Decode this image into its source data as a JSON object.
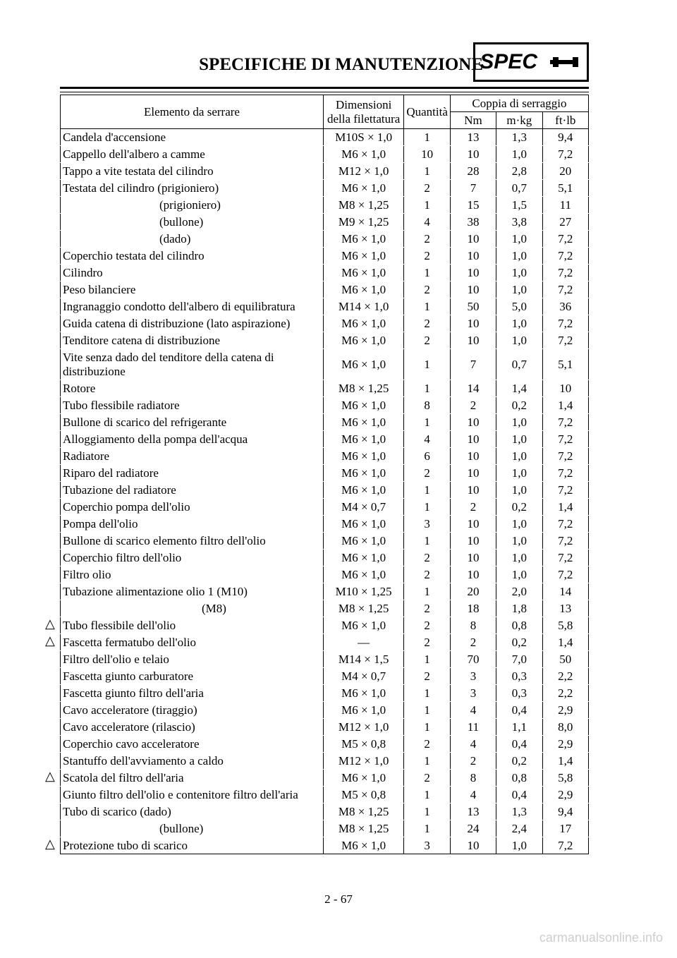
{
  "header": {
    "title": "SPECIFICHE DI MANUTENZIONE",
    "spec_label": "SPEC"
  },
  "table": {
    "headers": {
      "item": "Elemento da serrare",
      "dimensions": "Dimensioni della filettatura",
      "quantity": "Quantità",
      "torque_group": "Coppia di serraggio",
      "nm": "Nm",
      "mkg": "m·kg",
      "ftlb": "ft·lb"
    },
    "rows": [
      {
        "item": "Candela d'accensione",
        "dim": "M10S × 1,0",
        "qty": "1",
        "nm": "13",
        "mkg": "1,3",
        "ftlb": "9,4",
        "triangle": false
      },
      {
        "item": "Cappello dell'albero a camme",
        "dim": "M6 × 1,0",
        "qty": "10",
        "nm": "10",
        "mkg": "1,0",
        "ftlb": "7,2",
        "triangle": false
      },
      {
        "item": "Tappo a vite testata del cilindro",
        "dim": "M12 × 1,0",
        "qty": "1",
        "nm": "28",
        "mkg": "2,8",
        "ftlb": "20",
        "triangle": false
      },
      {
        "item": "Testata del cilindro  (prigioniero)",
        "dim": "M6 × 1,0",
        "qty": "2",
        "nm": "7",
        "mkg": "0,7",
        "ftlb": "5,1",
        "triangle": false
      },
      {
        "item": "(prigioniero)",
        "dim": "M8 × 1,25",
        "qty": "1",
        "nm": "15",
        "mkg": "1,5",
        "ftlb": "11",
        "triangle": false,
        "indent": true
      },
      {
        "item": "(bullone)",
        "dim": "M9 × 1,25",
        "qty": "4",
        "nm": "38",
        "mkg": "3,8",
        "ftlb": "27",
        "triangle": false,
        "indent": true
      },
      {
        "item": "(dado)",
        "dim": "M6 × 1,0",
        "qty": "2",
        "nm": "10",
        "mkg": "1,0",
        "ftlb": "7,2",
        "triangle": false,
        "indent": true
      },
      {
        "item": "Coperchio testata del cilindro",
        "dim": "M6 × 1,0",
        "qty": "2",
        "nm": "10",
        "mkg": "1,0",
        "ftlb": "7,2",
        "triangle": false
      },
      {
        "item": "Cilindro",
        "dim": "M6 × 1,0",
        "qty": "1",
        "nm": "10",
        "mkg": "1,0",
        "ftlb": "7,2",
        "triangle": false
      },
      {
        "item": "Peso bilanciere",
        "dim": "M6 × 1,0",
        "qty": "2",
        "nm": "10",
        "mkg": "1,0",
        "ftlb": "7,2",
        "triangle": false
      },
      {
        "item": "Ingranaggio condotto dell'albero di equilibratura",
        "dim": "M14 × 1,0",
        "qty": "1",
        "nm": "50",
        "mkg": "5,0",
        "ftlb": "36",
        "triangle": false
      },
      {
        "item": "Guida catena di distribuzione (lato aspirazione)",
        "dim": "M6 × 1,0",
        "qty": "2",
        "nm": "10",
        "mkg": "1,0",
        "ftlb": "7,2",
        "triangle": false
      },
      {
        "item": "Tenditore catena di distribuzione",
        "dim": "M6 × 1,0",
        "qty": "2",
        "nm": "10",
        "mkg": "1,0",
        "ftlb": "7,2",
        "triangle": false
      },
      {
        "item": "Vite senza dado del tenditore della catena di distribuzione",
        "dim": "M6 × 1,0",
        "qty": "1",
        "nm": "7",
        "mkg": "0,7",
        "ftlb": "5,1",
        "triangle": false
      },
      {
        "item": "Rotore",
        "dim": "M8 × 1,25",
        "qty": "1",
        "nm": "14",
        "mkg": "1,4",
        "ftlb": "10",
        "triangle": false
      },
      {
        "item": "Tubo flessibile radiatore",
        "dim": "M6 × 1,0",
        "qty": "8",
        "nm": "2",
        "mkg": "0,2",
        "ftlb": "1,4",
        "triangle": false
      },
      {
        "item": "Bullone di scarico del refrigerante",
        "dim": "M6 × 1,0",
        "qty": "1",
        "nm": "10",
        "mkg": "1,0",
        "ftlb": "7,2",
        "triangle": false
      },
      {
        "item": "Alloggiamento della pompa dell'acqua",
        "dim": "M6 × 1,0",
        "qty": "4",
        "nm": "10",
        "mkg": "1,0",
        "ftlb": "7,2",
        "triangle": false
      },
      {
        "item": "Radiatore",
        "dim": "M6 × 1,0",
        "qty": "6",
        "nm": "10",
        "mkg": "1,0",
        "ftlb": "7,2",
        "triangle": false
      },
      {
        "item": "Riparo del radiatore",
        "dim": "M6 × 1,0",
        "qty": "2",
        "nm": "10",
        "mkg": "1,0",
        "ftlb": "7,2",
        "triangle": false
      },
      {
        "item": "Tubazione del radiatore",
        "dim": "M6 × 1,0",
        "qty": "1",
        "nm": "10",
        "mkg": "1,0",
        "ftlb": "7,2",
        "triangle": false
      },
      {
        "item": "Coperchio pompa dell'olio",
        "dim": "M4 × 0,7",
        "qty": "1",
        "nm": "2",
        "mkg": "0,2",
        "ftlb": "1,4",
        "triangle": false
      },
      {
        "item": "Pompa dell'olio",
        "dim": "M6 × 1,0",
        "qty": "3",
        "nm": "10",
        "mkg": "1,0",
        "ftlb": "7,2",
        "triangle": false
      },
      {
        "item": "Bullone di scarico elemento filtro dell'olio",
        "dim": "M6 × 1,0",
        "qty": "1",
        "nm": "10",
        "mkg": "1,0",
        "ftlb": "7,2",
        "triangle": false
      },
      {
        "item": "Coperchio filtro dell'olio",
        "dim": "M6 × 1,0",
        "qty": "2",
        "nm": "10",
        "mkg": "1,0",
        "ftlb": "7,2",
        "triangle": false
      },
      {
        "item": "Filtro olio",
        "dim": "M6 × 1,0",
        "qty": "2",
        "nm": "10",
        "mkg": "1,0",
        "ftlb": "7,2",
        "triangle": false
      },
      {
        "item": "Tubazione alimentazione olio 1 (M10)",
        "dim": "M10 × 1,25",
        "qty": "1",
        "nm": "20",
        "mkg": "2,0",
        "ftlb": "14",
        "triangle": false
      },
      {
        "item": "(M8)",
        "dim": "M8 × 1,25",
        "qty": "2",
        "nm": "18",
        "mkg": "1,8",
        "ftlb": "13",
        "triangle": false,
        "indent2": true
      },
      {
        "item": "Tubo flessibile dell'olio",
        "dim": "M6 × 1,0",
        "qty": "2",
        "nm": "8",
        "mkg": "0,8",
        "ftlb": "5,8",
        "triangle": true
      },
      {
        "item": "Fascetta fermatubo dell'olio",
        "dim": "—",
        "qty": "2",
        "nm": "2",
        "mkg": "0,2",
        "ftlb": "1,4",
        "triangle": true
      },
      {
        "item": "Filtro dell'olio e telaio",
        "dim": "M14 × 1,5",
        "qty": "1",
        "nm": "70",
        "mkg": "7,0",
        "ftlb": "50",
        "triangle": false
      },
      {
        "item": "Fascetta giunto carburatore",
        "dim": "M4 × 0,7",
        "qty": "2",
        "nm": "3",
        "mkg": "0,3",
        "ftlb": "2,2",
        "triangle": false
      },
      {
        "item": "Fascetta giunto filtro dell'aria",
        "dim": "M6 × 1,0",
        "qty": "1",
        "nm": "3",
        "mkg": "0,3",
        "ftlb": "2,2",
        "triangle": false
      },
      {
        "item": "Cavo acceleratore (tiraggio)",
        "dim": "M6 × 1,0",
        "qty": "1",
        "nm": "4",
        "mkg": "0,4",
        "ftlb": "2,9",
        "triangle": false
      },
      {
        "item": "Cavo acceleratore (rilascio)",
        "dim": "M12 × 1,0",
        "qty": "1",
        "nm": "11",
        "mkg": "1,1",
        "ftlb": "8,0",
        "triangle": false
      },
      {
        "item": "Coperchio cavo acceleratore",
        "dim": "M5 × 0,8",
        "qty": "2",
        "nm": "4",
        "mkg": "0,4",
        "ftlb": "2,9",
        "triangle": false
      },
      {
        "item": "Stantuffo dell'avviamento a caldo",
        "dim": "M12 × 1,0",
        "qty": "1",
        "nm": "2",
        "mkg": "0,2",
        "ftlb": "1,4",
        "triangle": false
      },
      {
        "item": "Scatola del filtro dell'aria",
        "dim": "M6 × 1,0",
        "qty": "2",
        "nm": "8",
        "mkg": "0,8",
        "ftlb": "5,8",
        "triangle": true
      },
      {
        "item": "Giunto filtro dell'olio e contenitore filtro dell'aria",
        "dim": "M5 × 0,8",
        "qty": "1",
        "nm": "4",
        "mkg": "0,4",
        "ftlb": "2,9",
        "triangle": false
      },
      {
        "item": "Tubo di scarico (dado)",
        "dim": "M8 × 1,25",
        "qty": "1",
        "nm": "13",
        "mkg": "1,3",
        "ftlb": "9,4",
        "triangle": false
      },
      {
        "item": "(bullone)",
        "dim": "M8 × 1,25",
        "qty": "1",
        "nm": "24",
        "mkg": "2,4",
        "ftlb": "17",
        "triangle": false,
        "indent": true
      },
      {
        "item": "Protezione tubo di scarico",
        "dim": "M6 × 1,0",
        "qty": "3",
        "nm": "10",
        "mkg": "1,0",
        "ftlb": "7,2",
        "triangle": true
      }
    ]
  },
  "page_number": "2 - 67",
  "watermark": "carmanualsonline.info"
}
